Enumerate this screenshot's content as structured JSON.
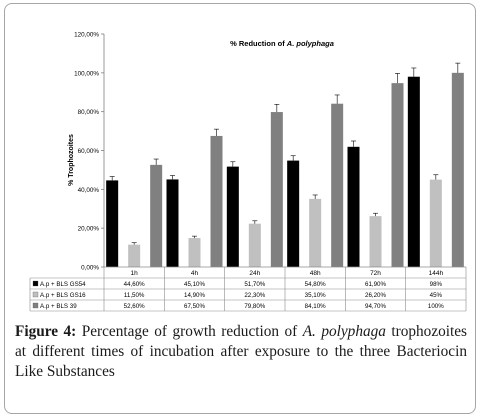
{
  "chart_data": {
    "type": "bar",
    "title_prefix": "% Reduction of ",
    "title_species": "A. polyphaga",
    "ylabel": "% Trophozoites",
    "ylim": [
      0,
      120
    ],
    "yticks": [
      0,
      20,
      40,
      60,
      80,
      100,
      120
    ],
    "ytick_labels": [
      "0,00%",
      "20,00%",
      "40,00%",
      "60,00%",
      "80,00%",
      "100,00%",
      "120,00%"
    ],
    "grid": false,
    "legend": "data table below plot",
    "categories": [
      "1h",
      "4h",
      "24h",
      "48h",
      "72h",
      "144h"
    ],
    "series": [
      {
        "name": "A.p + BLS GS54",
        "color": "#000000",
        "values": [
          44.6,
          45.1,
          51.7,
          54.8,
          61.9,
          98
        ],
        "errors": [
          2,
          2,
          2.5,
          2.5,
          3,
          4.5
        ],
        "labels": [
          "44,60%",
          "45,10%",
          "51,70%",
          "54,80%",
          "61,90%",
          "98%"
        ]
      },
      {
        "name": "A.p + BLS GS16",
        "color": "#c0c0c0",
        "values": [
          11.5,
          14.9,
          22.3,
          35.1,
          26.2,
          45
        ],
        "errors": [
          1,
          1,
          1.5,
          2,
          1.5,
          2.5
        ],
        "labels": [
          "11,50%",
          "14,90%",
          "22,30%",
          "35,10%",
          "26,20%",
          "45%"
        ]
      },
      {
        "name": "A.p + BLS 39",
        "color": "#808080",
        "values": [
          52.6,
          67.5,
          79.8,
          84.1,
          94.7,
          100
        ],
        "errors": [
          3,
          3.5,
          4,
          4.5,
          5,
          5
        ],
        "labels": [
          "52,60%",
          "67,50%",
          "79,80%",
          "84,10%",
          "94,70%",
          "100%"
        ]
      }
    ]
  },
  "caption": {
    "figure_label": "Figure 4:",
    "text_before": " Percentage of growth reduction of ",
    "species": "A. polyphaga",
    "text_after": " trophozoites at different times of incubation after exposure to the three Bacteriocin Like Substances"
  }
}
